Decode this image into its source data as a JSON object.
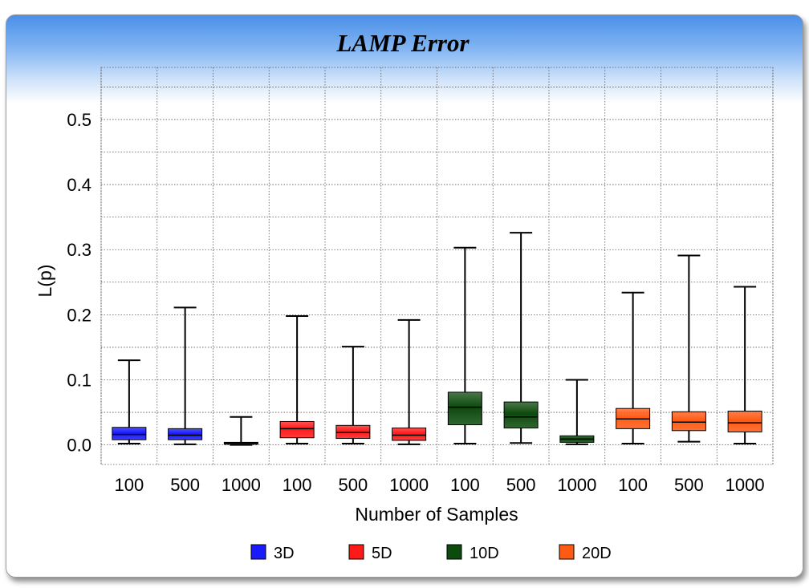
{
  "chart_data": {
    "type": "box",
    "title": "LAMP Error",
    "xlabel": "Number of Samples",
    "ylabel": "L(p)",
    "ylim": [
      -0.03,
      0.58
    ],
    "yticks": [
      "0.0",
      "0.1",
      "0.2",
      "0.3",
      "0.4",
      "0.5"
    ],
    "grid": true,
    "legend_position": "bottom",
    "categories": [
      "100",
      "500",
      "1000",
      "100",
      "500",
      "1000",
      "100",
      "500",
      "1000",
      "100",
      "500",
      "1000"
    ],
    "series": [
      {
        "name": "3D",
        "color": "#1a1aff",
        "boxes": [
          {
            "category_index": 0,
            "min": 0.002,
            "q1": 0.008,
            "median": 0.016,
            "q3": 0.027,
            "max": 0.13
          },
          {
            "category_index": 1,
            "min": 0.001,
            "q1": 0.008,
            "median": 0.015,
            "q3": 0.025,
            "max": 0.211
          },
          {
            "category_index": 2,
            "min": 0.0,
            "q1": 0.001,
            "median": 0.003,
            "q3": 0.004,
            "max": 0.043
          }
        ]
      },
      {
        "name": "5D",
        "color": "#ff1a1a",
        "boxes": [
          {
            "category_index": 3,
            "min": 0.002,
            "q1": 0.011,
            "median": 0.025,
            "q3": 0.036,
            "max": 0.198
          },
          {
            "category_index": 4,
            "min": 0.002,
            "q1": 0.01,
            "median": 0.019,
            "q3": 0.03,
            "max": 0.151
          },
          {
            "category_index": 5,
            "min": 0.001,
            "q1": 0.007,
            "median": 0.015,
            "q3": 0.026,
            "max": 0.192
          }
        ]
      },
      {
        "name": "10D",
        "color": "#0d4a0d",
        "boxes": [
          {
            "category_index": 6,
            "min": 0.002,
            "q1": 0.031,
            "median": 0.058,
            "q3": 0.081,
            "max": 0.303
          },
          {
            "category_index": 7,
            "min": 0.003,
            "q1": 0.026,
            "median": 0.043,
            "q3": 0.066,
            "max": 0.326
          },
          {
            "category_index": 8,
            "min": 0.001,
            "q1": 0.004,
            "median": 0.009,
            "q3": 0.014,
            "max": 0.1
          }
        ]
      },
      {
        "name": "20D",
        "color": "#ff5a14",
        "boxes": [
          {
            "category_index": 9,
            "min": 0.002,
            "q1": 0.025,
            "median": 0.04,
            "q3": 0.056,
            "max": 0.234
          },
          {
            "category_index": 10,
            "min": 0.005,
            "q1": 0.022,
            "median": 0.035,
            "q3": 0.051,
            "max": 0.291
          },
          {
            "category_index": 11,
            "min": 0.002,
            "q1": 0.02,
            "median": 0.034,
            "q3": 0.052,
            "max": 0.243
          }
        ]
      }
    ]
  }
}
